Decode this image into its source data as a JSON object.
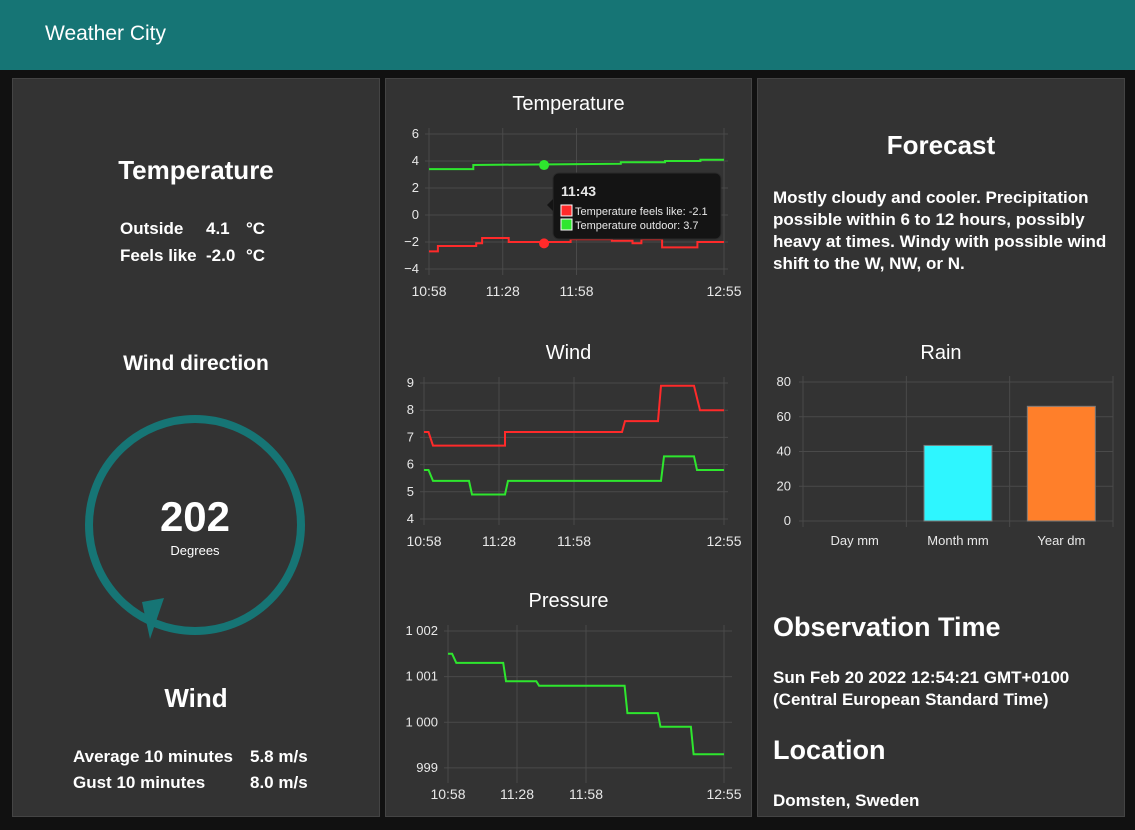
{
  "header": {
    "title": "Weather City"
  },
  "left": {
    "temperature_heading": "Temperature",
    "outside_label": "Outside",
    "outside_value": "4.1",
    "outside_unit": "°C",
    "feels_label": "Feels like",
    "feels_value": "-2.0",
    "feels_unit": "°C",
    "wind_direction_heading": "Wind direction",
    "wind_direction_value": "202",
    "wind_direction_unit": "Degrees",
    "wind_heading": "Wind",
    "avg_label": "Average 10 minutes",
    "avg_value": "5.8 m/s",
    "gust_label": "Gust 10 minutes",
    "gust_value": "8.0 m/s"
  },
  "colors": {
    "header": "#167575",
    "panel": "#333333",
    "series_red": "#ff2a2a",
    "series_green": "#2ee62e",
    "bar_cyan": "#2ef6ff",
    "bar_orange": "#ff7f2a",
    "gauge": "#167575"
  },
  "tooltip": {
    "time": "11:43",
    "line1": "Temperature feels like: -2.1",
    "line2": "Temperature outdoor: 3.7"
  },
  "chart_data": [
    {
      "type": "line",
      "title": "Temperature",
      "x_ticks": [
        "10:58",
        "11:28",
        "11:58",
        "12:55"
      ],
      "ylim": [
        -4,
        6
      ],
      "y_ticks": [
        "6",
        "4",
        "2",
        "0",
        "−2",
        "−4"
      ],
      "grid": true,
      "series": [
        {
          "name": "Temperature outdoor",
          "color": "#2ee62e",
          "steps": [
            [
              0,
              3.4
            ],
            [
              0.15,
              3.4
            ],
            [
              0.15,
              3.7
            ],
            [
              0.65,
              3.8
            ],
            [
              0.65,
              3.9
            ],
            [
              0.8,
              3.9
            ],
            [
              0.8,
              4.0
            ],
            [
              0.92,
              4.0
            ],
            [
              0.92,
              4.1
            ],
            [
              1,
              4.1
            ]
          ]
        },
        {
          "name": "Temperature feels like",
          "color": "#ff2a2a",
          "steps": [
            [
              0,
              -2.7
            ],
            [
              0.03,
              -2.7
            ],
            [
              0.03,
              -2.3
            ],
            [
              0.16,
              -2.3
            ],
            [
              0.16,
              -2.1
            ],
            [
              0.18,
              -2.1
            ],
            [
              0.18,
              -1.7
            ],
            [
              0.27,
              -1.7
            ],
            [
              0.27,
              -2.0
            ],
            [
              0.48,
              -2.0
            ],
            [
              0.48,
              -1.8
            ],
            [
              0.62,
              -1.8
            ],
            [
              0.62,
              -1.9
            ],
            [
              0.69,
              -1.9
            ],
            [
              0.69,
              -2.1
            ],
            [
              0.72,
              -2.1
            ],
            [
              0.72,
              -1.8
            ],
            [
              0.79,
              -1.8
            ],
            [
              0.79,
              -2.4
            ],
            [
              0.91,
              -2.4
            ],
            [
              0.91,
              -2.0
            ],
            [
              1,
              -2.0
            ]
          ]
        }
      ]
    },
    {
      "type": "line",
      "title": "Wind",
      "x_ticks": [
        "10:58",
        "11:28",
        "11:58",
        "12:55"
      ],
      "ylim": [
        4,
        9
      ],
      "y_ticks": [
        "9",
        "8",
        "7",
        "6",
        "5",
        "4"
      ],
      "grid": true,
      "series": [
        {
          "name": "Gust",
          "color": "#ff2a2a",
          "steps": [
            [
              0,
              7.2
            ],
            [
              0.015,
              7.2
            ],
            [
              0.03,
              6.7
            ],
            [
              0.27,
              6.7
            ],
            [
              0.27,
              7.2
            ],
            [
              0.66,
              7.2
            ],
            [
              0.67,
              7.6
            ],
            [
              0.78,
              7.6
            ],
            [
              0.79,
              8.9
            ],
            [
              0.9,
              8.9
            ],
            [
              0.92,
              8.0
            ],
            [
              1,
              8.0
            ]
          ]
        },
        {
          "name": "Average",
          "color": "#2ee62e",
          "steps": [
            [
              0,
              5.8
            ],
            [
              0.015,
              5.8
            ],
            [
              0.03,
              5.4
            ],
            [
              0.15,
              5.4
            ],
            [
              0.16,
              4.9
            ],
            [
              0.27,
              4.9
            ],
            [
              0.28,
              5.4
            ],
            [
              0.79,
              5.4
            ],
            [
              0.8,
              6.3
            ],
            [
              0.9,
              6.3
            ],
            [
              0.91,
              5.8
            ],
            [
              1,
              5.8
            ]
          ]
        }
      ]
    },
    {
      "type": "line",
      "title": "Pressure",
      "x_ticks": [
        "10:58",
        "11:28",
        "11:58",
        "12:55"
      ],
      "ylim": [
        998.8,
        1002.0
      ],
      "y_ticks": [
        "1 002",
        "1 001",
        "1 000",
        "999"
      ],
      "grid": true,
      "series": [
        {
          "name": "Pressure",
          "color": "#2ee62e",
          "steps": [
            [
              0,
              1001.5
            ],
            [
              0.015,
              1001.5
            ],
            [
              0.03,
              1001.3
            ],
            [
              0.2,
              1001.3
            ],
            [
              0.21,
              1000.9
            ],
            [
              0.32,
              1000.9
            ],
            [
              0.33,
              1000.8
            ],
            [
              0.64,
              1000.8
            ],
            [
              0.65,
              1000.2
            ],
            [
              0.76,
              1000.2
            ],
            [
              0.77,
              999.9
            ],
            [
              0.88,
              999.9
            ],
            [
              0.89,
              999.3
            ],
            [
              1,
              999.3
            ]
          ]
        }
      ]
    },
    {
      "type": "bar",
      "title": "Rain",
      "categories": [
        "Day mm",
        "Month mm",
        "Year dm"
      ],
      "values": [
        0,
        43.5,
        66
      ],
      "colors": [
        "#2ef6ff",
        "#2ef6ff",
        "#ff7f2a"
      ],
      "ylim": [
        0,
        80
      ],
      "y_ticks": [
        "80",
        "60",
        "40",
        "20",
        "0"
      ],
      "grid": true
    }
  ],
  "right": {
    "forecast_heading": "Forecast",
    "forecast_text": "Mostly cloudy and cooler. Precipitation possible within 6 to 12 hours, possibly heavy at times. Windy with possible wind shift to the W, NW, or N.",
    "observation_heading": "Observation Time",
    "observation_line1": "Sun Feb 20 2022 12:54:21 GMT+0100",
    "observation_line2": "(Central European Standard Time)",
    "location_heading": "Location",
    "location_value": "Domsten, Sweden"
  }
}
